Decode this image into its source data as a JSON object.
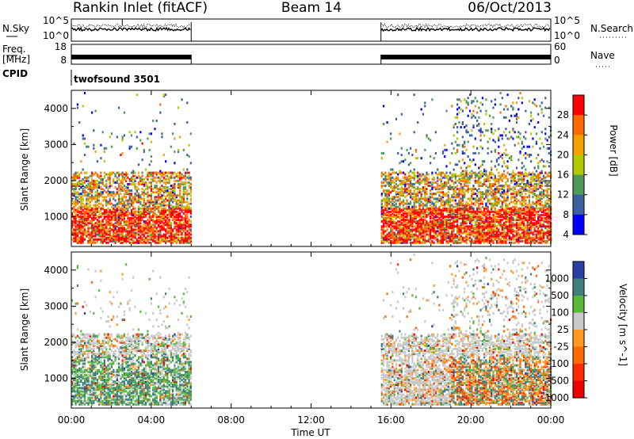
{
  "header": {
    "station": "Rankin Inlet (fitACF)",
    "beam": "Beam 14",
    "date": "06/Oct/2013"
  },
  "params": {
    "nsky_label": "N.Sky",
    "nsearch_label": "N.Search",
    "nsky_ticks": [
      "10^5",
      "10^0"
    ],
    "nsearch_ticks": [
      "10^5",
      "10^0"
    ],
    "freq_label_1": "Freq.",
    "freq_label_2": "[MHz]",
    "freq_ticks": [
      "18",
      "8"
    ],
    "nave_label": "Nave",
    "nave_ticks": [
      "60",
      "0"
    ],
    "cpid_label": "CPID",
    "cpid_value": "twofsound 3501"
  },
  "chart_data": [
    {
      "type": "heatmap",
      "name": "power",
      "ylabel": "Slant Range [km]",
      "yticks": [
        "1000",
        "2000",
        "3000",
        "4000"
      ],
      "ylim": [
        180,
        4500
      ],
      "data_intervals_ut_hours": [
        [
          0.0,
          6.0
        ],
        [
          15.5,
          24.0
        ]
      ],
      "colorbar_label": "Power [dB]",
      "colorbar_ticks": [
        "28",
        "24",
        "20",
        "16",
        "12",
        "8",
        "4"
      ],
      "colors": [
        "#ff0000",
        "#ff6a00",
        "#f3a000",
        "#b4c800",
        "#4f9a55",
        "#3c5fa0",
        "#0000ff"
      ]
    },
    {
      "type": "heatmap",
      "name": "velocity",
      "ylabel": "Slant Range [km]",
      "yticks": [
        "1000",
        "2000",
        "3000",
        "4000"
      ],
      "ylim": [
        180,
        4500
      ],
      "data_intervals_ut_hours": [
        [
          0.0,
          6.0
        ],
        [
          15.5,
          24.0
        ]
      ],
      "colorbar_label": "Velocity [m s^-1]",
      "colorbar_ticks": [
        "1000",
        "500",
        "100",
        "25",
        "-25",
        "-100",
        "-500",
        "-1000"
      ],
      "colors": [
        "#2a3ea6",
        "#3f7f7b",
        "#57b83a",
        "#c8c8c8",
        "#ff9a1e",
        "#ff6a00",
        "#ff2a00",
        "#ee0000"
      ]
    }
  ],
  "xaxis": {
    "ticks": [
      "00:00",
      "04:00",
      "08:00",
      "12:00",
      "16:00",
      "20:00",
      "00:00"
    ],
    "label": "Time UT"
  }
}
